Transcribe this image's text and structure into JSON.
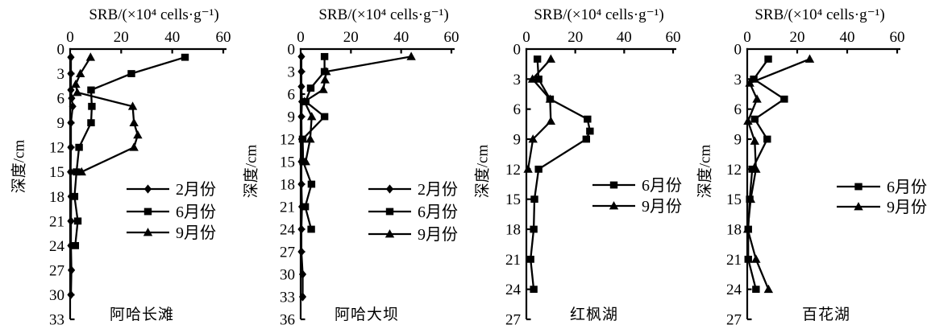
{
  "colors": {
    "background": "#ffffff",
    "ink": "#000000"
  },
  "chart_data": [
    {
      "type": "line",
      "title": "阿哈长滩",
      "xlabel": "SRB/(×10⁴ cells·g⁻¹)",
      "ylabel": "深度/cm",
      "xlim": [
        0,
        60
      ],
      "xticks": [
        0,
        20,
        40,
        60
      ],
      "ylim": [
        0,
        33
      ],
      "yticks": [
        0,
        3,
        6,
        9,
        12,
        15,
        18,
        21,
        24,
        27,
        30,
        33
      ],
      "grid": false,
      "legend_position": "middle-right",
      "series": [
        {
          "name": "2月份",
          "marker": "diamond",
          "points": [
            [
              0.3,
              1
            ],
            [
              0.3,
              3
            ],
            [
              0.3,
              5
            ],
            [
              0.6,
              6
            ],
            [
              1,
              7
            ],
            [
              0.3,
              9
            ],
            [
              0.3,
              12
            ],
            [
              0.2,
              15
            ],
            [
              0.4,
              18
            ],
            [
              0.3,
              21
            ],
            [
              0.3,
              24
            ],
            [
              0.5,
              27
            ],
            [
              0.3,
              30
            ]
          ]
        },
        {
          "name": "6月份",
          "marker": "square",
          "points": [
            [
              45,
              1
            ],
            [
              24,
              3
            ],
            [
              8.2,
              5
            ],
            [
              8.5,
              7
            ],
            [
              8.2,
              9
            ],
            [
              3.5,
              12
            ],
            [
              2.5,
              15
            ],
            [
              1.7,
              18
            ],
            [
              3,
              21
            ],
            [
              2,
              24
            ]
          ]
        },
        {
          "name": "9月份",
          "marker": "triangle",
          "points": [
            [
              8,
              1
            ],
            [
              4,
              3
            ],
            [
              2.2,
              4.3
            ],
            [
              2.8,
              5.3
            ],
            [
              24.5,
              7
            ],
            [
              25,
              9
            ],
            [
              26.5,
              10.5
            ],
            [
              25,
              12
            ],
            [
              4.5,
              15
            ]
          ]
        }
      ]
    },
    {
      "type": "line",
      "title": "阿哈大坝",
      "xlabel": "SRB/(×10⁴ cells·g⁻¹)",
      "ylabel": "深度/cm",
      "xlim": [
        0,
        60
      ],
      "xticks": [
        0,
        20,
        40,
        60
      ],
      "ylim": [
        0,
        36
      ],
      "yticks": [
        0,
        3,
        6,
        9,
        12,
        15,
        18,
        21,
        24,
        27,
        30,
        33,
        36
      ],
      "grid": false,
      "legend_position": "middle-right",
      "series": [
        {
          "name": "2月份",
          "marker": "diamond",
          "points": [
            [
              0.3,
              1
            ],
            [
              0.3,
              3
            ],
            [
              0.3,
              5
            ],
            [
              0.5,
              7
            ],
            [
              0.3,
              9
            ],
            [
              0.4,
              12
            ],
            [
              0.3,
              15
            ],
            [
              0.3,
              18
            ],
            [
              0.5,
              21
            ],
            [
              0.3,
              24
            ],
            [
              0.3,
              27
            ],
            [
              0.8,
              30
            ],
            [
              0.8,
              33
            ]
          ]
        },
        {
          "name": "6月份",
          "marker": "square",
          "points": [
            [
              9.5,
              1
            ],
            [
              9.5,
              3
            ],
            [
              4,
              5.2
            ],
            [
              2,
              7
            ],
            [
              9.5,
              9
            ],
            [
              0.8,
              12
            ],
            [
              1,
              15
            ],
            [
              4.3,
              18
            ],
            [
              1.8,
              21
            ],
            [
              4.2,
              24
            ]
          ]
        },
        {
          "name": "9月份",
          "marker": "triangle",
          "points": [
            [
              44,
              1
            ],
            [
              10.2,
              3
            ],
            [
              9.7,
              4.1
            ],
            [
              9,
              5.4
            ],
            [
              1.5,
              7
            ],
            [
              4.4,
              9
            ],
            [
              3.8,
              12
            ],
            [
              2,
              15
            ]
          ]
        }
      ]
    },
    {
      "type": "line",
      "title": "红枫湖",
      "xlabel": "SRB/(×10⁴ cells·g⁻¹)",
      "ylabel": "深度/cm",
      "xlim": [
        0,
        60
      ],
      "xticks": [
        0,
        20,
        40,
        60
      ],
      "ylim": [
        0,
        27
      ],
      "yticks": [
        0,
        3,
        6,
        9,
        12,
        15,
        18,
        21,
        24,
        27
      ],
      "grid": false,
      "legend_position": "middle-right",
      "series": [
        {
          "name": "6月份",
          "marker": "square",
          "points": [
            [
              4.5,
              1
            ],
            [
              5,
              3
            ],
            [
              9.7,
              5
            ],
            [
              25,
              7
            ],
            [
              26,
              8.2
            ],
            [
              24.5,
              9
            ],
            [
              5,
              12
            ],
            [
              3.3,
              15
            ],
            [
              3,
              18
            ],
            [
              1.7,
              21
            ],
            [
              3,
              24
            ]
          ]
        },
        {
          "name": "9月份",
          "marker": "triangle",
          "points": [
            [
              10,
              1
            ],
            [
              2.5,
              3
            ],
            [
              9.7,
              5
            ],
            [
              10,
              7.2
            ],
            [
              2.7,
              9
            ],
            [
              0.7,
              12
            ]
          ]
        }
      ]
    },
    {
      "type": "line",
      "title": "百花湖",
      "xlabel": "SRB/(×10⁴ cells·g⁻¹)",
      "ylabel": "深度/cm",
      "xlim": [
        0,
        60
      ],
      "xticks": [
        0,
        20,
        40,
        60
      ],
      "ylim": [
        0,
        27
      ],
      "yticks": [
        0,
        3,
        6,
        9,
        12,
        15,
        18,
        21,
        24,
        27
      ],
      "grid": false,
      "legend_position": "middle-right",
      "series": [
        {
          "name": "6月份",
          "marker": "square",
          "points": [
            [
              8.4,
              1
            ],
            [
              2.6,
              3
            ],
            [
              14.8,
              5
            ],
            [
              3,
              7
            ],
            [
              8,
              9
            ],
            [
              2,
              12
            ],
            [
              1,
              15
            ],
            [
              0.4,
              18
            ],
            [
              0.4,
              21
            ],
            [
              3.5,
              24
            ]
          ]
        },
        {
          "name": "9月份",
          "marker": "triangle",
          "points": [
            [
              25,
              1
            ],
            [
              1,
              3.4
            ],
            [
              3.9,
              5
            ],
            [
              0.3,
              7.2
            ],
            [
              3,
              9.2
            ],
            [
              3.5,
              12
            ],
            [
              1.4,
              15
            ],
            [
              0.2,
              18
            ],
            [
              3.5,
              21
            ],
            [
              8.5,
              24
            ]
          ]
        }
      ]
    }
  ]
}
